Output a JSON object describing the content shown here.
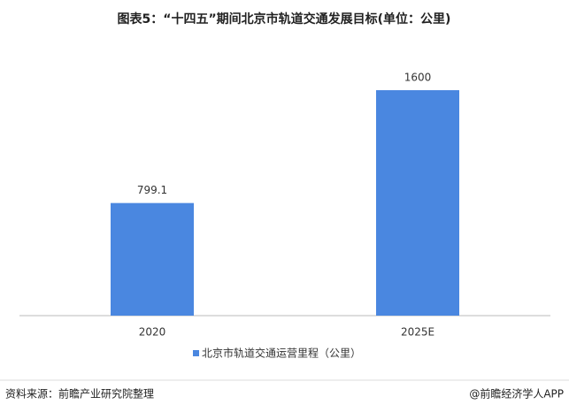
{
  "chart_data": {
    "type": "bar",
    "title": "图表5：“十四五”期间北京市轨道交通发展目标(单位：公里)",
    "categories": [
      "2020",
      "2025E"
    ],
    "series": [
      {
        "name": "北京市轨道交通运营里程（公里）",
        "color": "#4a87e0",
        "values": [
          799.1,
          1600
        ]
      }
    ],
    "source": "资料来源：前瞻产业研究院整理",
    "credit": "@前瞻经济学人APP",
    "legend": "bottom"
  }
}
